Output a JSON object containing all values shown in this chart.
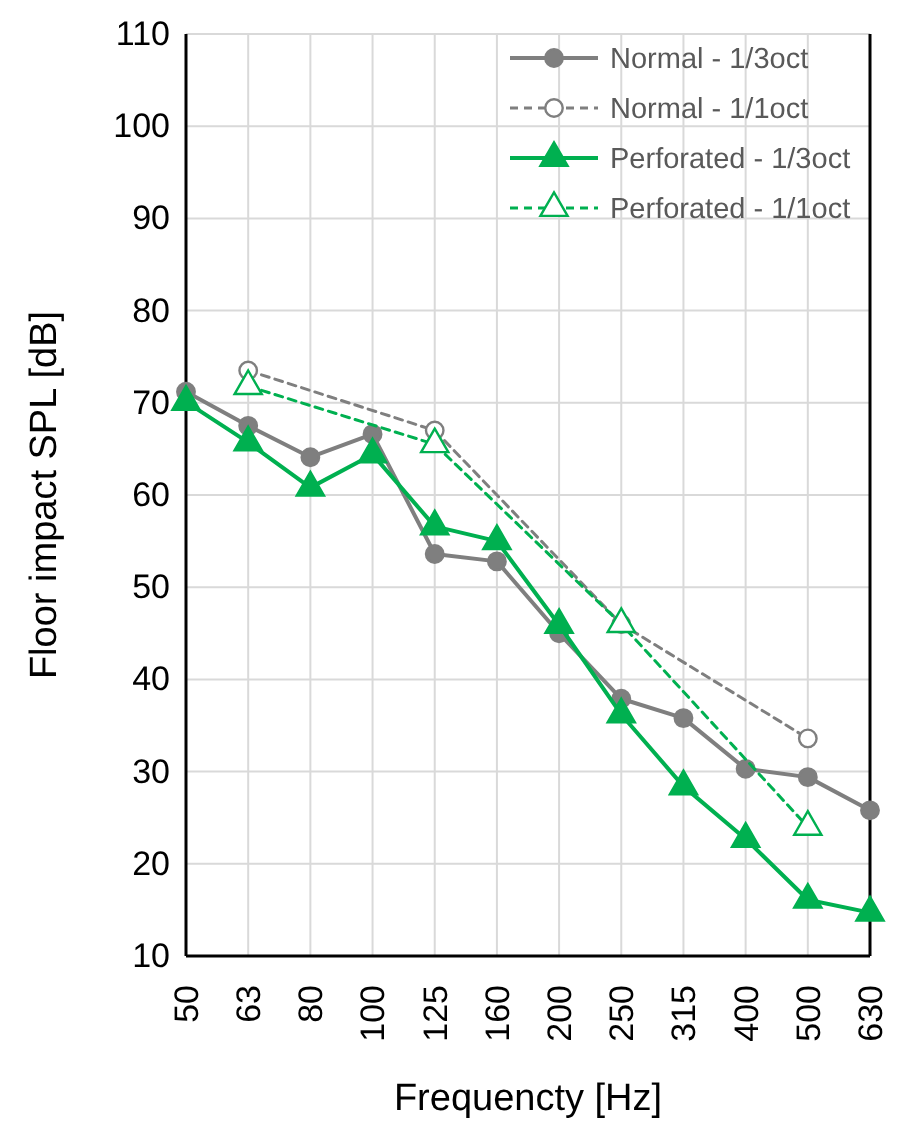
{
  "chart_data": {
    "type": "line",
    "xlabel": "Frequencty [Hz]",
    "ylabel": "Floor impact SPL [dB]",
    "categories": [
      "50",
      "63",
      "80",
      "100",
      "125",
      "160",
      "200",
      "250",
      "315",
      "400",
      "500",
      "630"
    ],
    "ylim": [
      10,
      110
    ],
    "yticks": [
      10,
      20,
      30,
      40,
      50,
      60,
      70,
      80,
      90,
      100,
      110
    ],
    "grid": true,
    "legend": "top right",
    "series": [
      {
        "name": "Normal - 1/3oct",
        "color": "#7f7f7f",
        "marker": "circle",
        "line_style": "solid",
        "values": [
          71.2,
          67.5,
          64.1,
          66.6,
          53.6,
          52.8,
          45.0,
          37.9,
          35.8,
          30.3,
          29.4,
          25.8
        ]
      },
      {
        "name": "Normal - 1/1oct",
        "color": "#7f7f7f",
        "marker": "circle",
        "line_style": "dashed",
        "values": [
          null,
          73.5,
          null,
          null,
          67.0,
          null,
          null,
          46.0,
          null,
          null,
          33.6,
          null
        ]
      },
      {
        "name": "Perforated - 1/3oct",
        "color": "#00b050",
        "marker": "triangle",
        "line_style": "solid",
        "values": [
          70.1,
          65.7,
          60.8,
          64.4,
          56.6,
          55.0,
          45.9,
          36.2,
          28.4,
          22.7,
          16.1,
          14.7
        ]
      },
      {
        "name": "Perforated - 1/1oct",
        "color": "#00b050",
        "marker": "triangle",
        "line_style": "dashed",
        "values": [
          null,
          71.8,
          null,
          null,
          65.5,
          null,
          null,
          46.0,
          null,
          null,
          24.0,
          null
        ]
      }
    ]
  }
}
